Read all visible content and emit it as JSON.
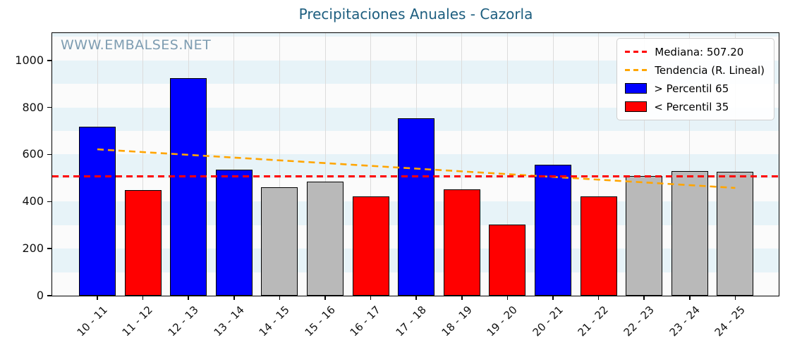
{
  "title": "Precipitaciones Anuales - Cazorla",
  "watermark": "WWW.EMBALSES.NET",
  "legend": {
    "median": "Mediana: 507.20",
    "trend": "Tendencia (R. Lineal)",
    "above": "> Percentil 65",
    "below": "< Percentil 35"
  },
  "colors": {
    "title": "#1d5e7f",
    "watermark": "#7d9cb1",
    "above": "#0000ff",
    "below": "#ff0000",
    "neutral": "#b9b9b9",
    "median_line": "#ff0000",
    "trend_line": "#ffa500",
    "band": "#e7f3f8",
    "plot_bg": "#fbfbfb"
  },
  "chart_data": {
    "type": "bar",
    "title": "Precipitaciones Anuales - Cazorla",
    "xlabel": "",
    "ylabel": "",
    "categories": [
      "10 - 11",
      "11 - 12",
      "12 - 13",
      "13 - 14",
      "14 - 15",
      "15 - 16",
      "16 - 17",
      "17 - 18",
      "18 - 19",
      "19 - 20",
      "20 - 21",
      "21 - 22",
      "22 - 23",
      "23 - 24",
      "24 - 25"
    ],
    "values": [
      718,
      448,
      925,
      536,
      462,
      486,
      422,
      753,
      452,
      303,
      558,
      423,
      507.2,
      530,
      527
    ],
    "bar_category": [
      "above",
      "below",
      "above",
      "above",
      "neutral",
      "neutral",
      "below",
      "above",
      "below",
      "below",
      "above",
      "below",
      "neutral",
      "neutral",
      "neutral"
    ],
    "category_meaning": {
      "above": "> Percentil 65 (azul)",
      "below": "< Percentil 35 (rojo)",
      "neutral": "entre percentiles (gris)"
    },
    "median": 507.2,
    "trend_line": {
      "start_category": "10 - 11",
      "start_value": 622,
      "end_category": "24 - 25",
      "end_value": 458
    },
    "yticks": [
      0,
      200,
      400,
      600,
      800,
      1000
    ],
    "ylim": [
      0,
      1116
    ],
    "legend_position": "upper right",
    "grid": "vertical gridlines at each category; horizontal pale-blue bands each 100 units (100-200, 300-400, 500-600, 700-800, 900-1000)"
  }
}
